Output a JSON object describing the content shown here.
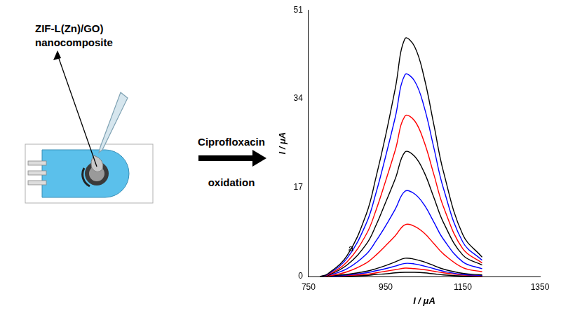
{
  "diagram": {
    "material_label": [
      "ZIF-L(Zn)/GO)",
      "nanocomposite"
    ],
    "arrow_label": [
      "Ciprofloxacin",
      "oxidation"
    ]
  },
  "chart_data": {
    "type": "line",
    "x_label": "I / μA",
    "y_label": "I / μA",
    "x": [
      780,
      800,
      850,
      900,
      925,
      950,
      975,
      1000,
      1025,
      1050,
      1075,
      1100,
      1150,
      1200
    ],
    "series": [
      {
        "color": "#000000",
        "values": [
          0,
          0.5,
          4,
          12,
          19,
          27,
          36,
          45.5,
          44,
          38,
          29,
          20,
          8,
          3.7
        ]
      },
      {
        "color": "#0000ff",
        "values": [
          0,
          0.4,
          3.5,
          10.2,
          16,
          23,
          30.5,
          38.6,
          37.4,
          32.4,
          24.6,
          16.8,
          6.6,
          3.1
        ]
      },
      {
        "color": "#ff0000",
        "values": [
          0,
          0.3,
          2.8,
          8.1,
          12.7,
          18.3,
          24.2,
          30.7,
          29.8,
          25.7,
          19.5,
          13.3,
          5.3,
          2.6
        ]
      },
      {
        "color": "#000000",
        "values": [
          0,
          0.2,
          2.2,
          6.2,
          9.8,
          14.2,
          18.7,
          23.8,
          23,
          19.9,
          15.1,
          10.3,
          4.1,
          2.2
        ]
      },
      {
        "color": "#0000ff",
        "values": [
          0,
          0.2,
          1.5,
          4.3,
          6.8,
          9.7,
          12.9,
          16.3,
          15.8,
          13.7,
          10.4,
          7.1,
          2.8,
          1.5
        ]
      },
      {
        "color": "#ff0000",
        "values": [
          0,
          0.1,
          0.9,
          2.6,
          4.1,
          5.9,
          7.8,
          9.9,
          9.6,
          8.3,
          6.3,
          4.3,
          1.7,
          0.9
        ]
      },
      {
        "color": "#000000",
        "values": [
          0,
          0.1,
          0.4,
          1,
          1.5,
          2.1,
          2.8,
          3.5,
          3.3,
          2.8,
          2.1,
          1.4,
          0.6,
          0.3
        ]
      },
      {
        "color": "#0000ff",
        "values": [
          0,
          0,
          0.3,
          0.7,
          1.1,
          1.5,
          2,
          2.5,
          2.4,
          2,
          1.5,
          1,
          0.4,
          0.2
        ]
      },
      {
        "color": "#ff0000",
        "values": [
          0,
          0,
          0.2,
          0.4,
          0.7,
          1,
          1.3,
          1.6,
          1.5,
          1.3,
          1,
          0.7,
          0.3,
          0.1
        ]
      },
      {
        "color": "#000000",
        "values": [
          0,
          0,
          0.1,
          0.2,
          0.4,
          0.5,
          0.7,
          0.8,
          0.8,
          0.7,
          0.5,
          0.3,
          0.1,
          0.1
        ]
      }
    ],
    "xlim": [
      750,
      1350
    ],
    "xticks": [
      750,
      950,
      1150,
      1350
    ],
    "ylim": [
      0,
      51
    ],
    "yticks": [
      0,
      17,
      34,
      51
    ],
    "grid": false,
    "annotations": [
      {
        "text": "a",
        "x": 860,
        "y": 5.3
      }
    ]
  }
}
